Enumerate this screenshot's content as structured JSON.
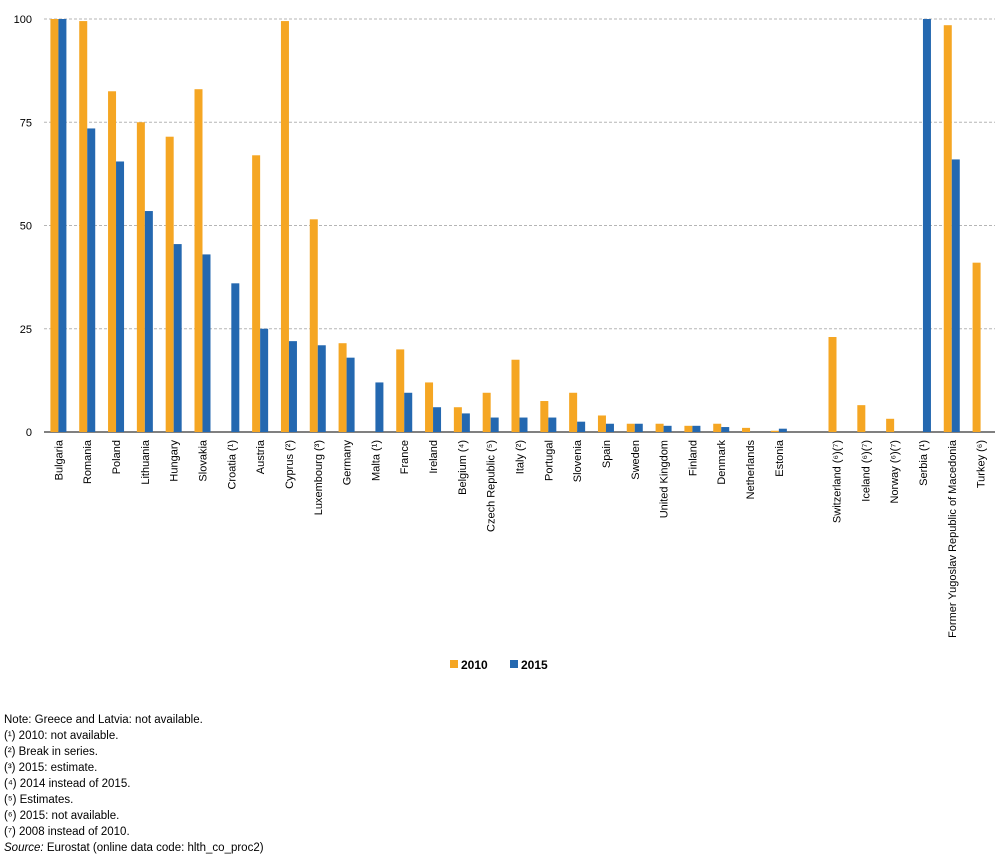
{
  "chart_data": {
    "type": "bar",
    "categories": [
      "Bulgaria",
      "Romania",
      "Poland",
      "Lithuania",
      "Hungary",
      "Slovakia",
      "Croatia (¹)",
      "Austria",
      "Cyprus (²)",
      "Luxembourg (³)",
      "Germany",
      "Malta (¹)",
      "France",
      "Ireland",
      "Belgium (⁴)",
      "Czech Republic (⁵)",
      "Italy (²)",
      "Portugal",
      "Slovenia",
      "Spain",
      "Sweden",
      "United Kingdom",
      "Finland",
      "Denmark",
      "Netherlands",
      "Estonia",
      "",
      "Switzerland (⁶)(⁷)",
      "Iceland (⁶)(⁷)",
      "Norway (⁶)(⁷)",
      "Serbia (¹)",
      "Former Yugoslav Republic of Macedonia",
      "Turkey (⁶)"
    ],
    "series": [
      {
        "name": "2010",
        "color": "#f5a623",
        "values": [
          100,
          99.5,
          82.5,
          75,
          71.5,
          83,
          null,
          67,
          99.5,
          51.5,
          21.5,
          null,
          20,
          12,
          6,
          9.5,
          17.5,
          7.5,
          9.5,
          4,
          2,
          2,
          1.5,
          2,
          1,
          0.3,
          null,
          23,
          6.5,
          3.2,
          null,
          98.5,
          41
        ]
      },
      {
        "name": "2015",
        "color": "#2468b0",
        "values": [
          100,
          73.5,
          65.5,
          53.5,
          45.5,
          43,
          36,
          25,
          22,
          21,
          18,
          12,
          9.5,
          6,
          4.5,
          3.5,
          3.5,
          3.5,
          2.5,
          2,
          2,
          1.5,
          1.5,
          1.2,
          null,
          0.8,
          null,
          null,
          null,
          null,
          100,
          66,
          null
        ]
      }
    ],
    "yticks": [
      0,
      25,
      50,
      75,
      100
    ],
    "ylim": [
      0,
      100
    ],
    "grid": true,
    "legend_position": "bottom-center"
  },
  "notes": [
    "Note: Greece and Latvia: not available.",
    "(¹) 2010: not available.",
    "(²) Break in series.",
    "(³) 2015: estimate.",
    "(⁴) 2014 instead of 2015.",
    "(⁵) Estimates.",
    "(⁶) 2015: not available.",
    "(⁷) 2008 instead of 2010."
  ],
  "source": {
    "prefix": "Source:",
    "text": " Eurostat (online data code: hlth_co_proc2)"
  }
}
